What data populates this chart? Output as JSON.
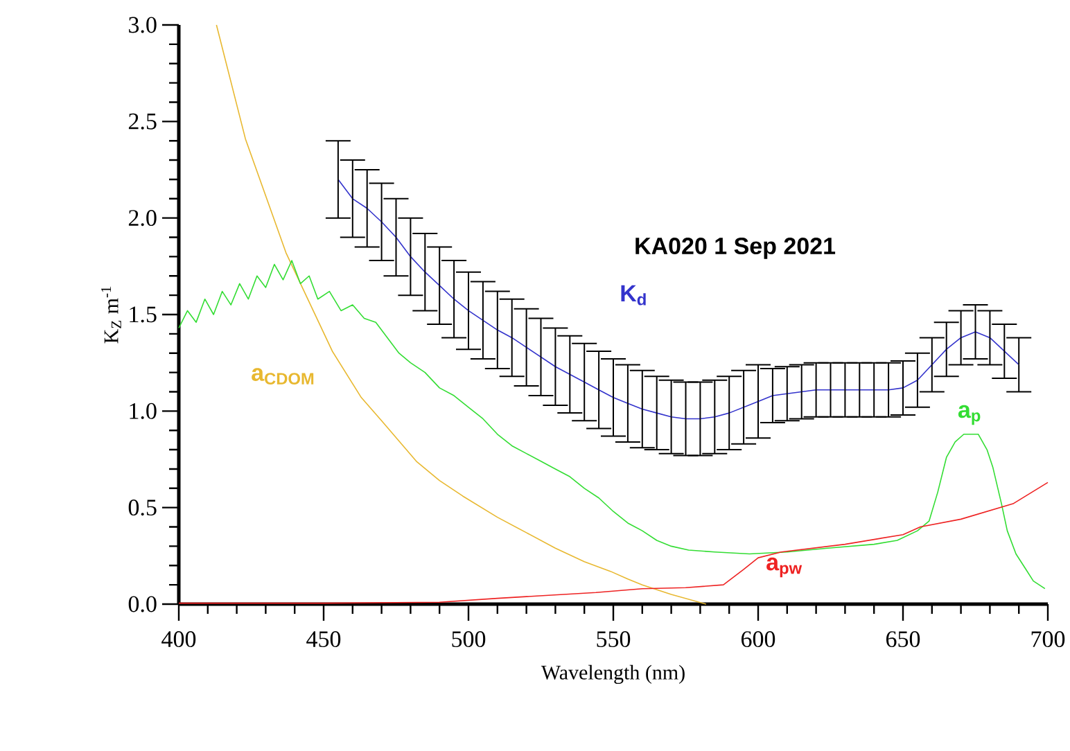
{
  "chart_data": {
    "type": "line",
    "title": "KA020 1 Sep 2021",
    "xlabel": "Wavelength (nm)",
    "ylabel": "K$_{Z}$ m$^{-1}$",
    "xlim": [
      400,
      700
    ],
    "ylim": [
      0,
      3
    ],
    "xticks": [
      400,
      450,
      500,
      550,
      600,
      650,
      700
    ],
    "yticks": [
      {
        "value": 0,
        "label": "0.0"
      },
      {
        "value": 0.5,
        "label": "0.5"
      },
      {
        "value": 1,
        "label": "1.0"
      },
      {
        "value": 1.5,
        "label": "1.5"
      },
      {
        "value": 2,
        "label": "2.0"
      },
      {
        "value": 2.5,
        "label": "2.5"
      },
      {
        "value": 3,
        "label": "3.0"
      }
    ],
    "series": [
      {
        "name": "a$_{CDOM}$",
        "color": "#e8b830",
        "x": [
          413,
          423,
          437,
          453,
          463,
          470,
          482,
          490,
          498,
          510,
          520,
          530,
          540,
          549,
          555,
          560,
          570,
          582
        ],
        "values": [
          3.0,
          2.41,
          1.82,
          1.31,
          1.07,
          0.95,
          0.74,
          0.64,
          0.56,
          0.45,
          0.37,
          0.29,
          0.22,
          0.17,
          0.13,
          0.1,
          0.05,
          0.0
        ]
      },
      {
        "name": "a$_{p}$",
        "color": "#33dd33",
        "x": [
          400,
          403,
          406,
          409,
          412,
          415,
          418,
          421,
          424,
          427,
          430,
          433,
          436,
          439,
          442,
          445,
          448,
          452,
          456,
          460,
          464,
          468,
          472,
          476,
          480,
          485,
          490,
          495,
          500,
          505,
          510,
          515,
          520,
          525,
          530,
          535,
          540,
          545,
          550,
          555,
          560,
          565,
          570,
          576,
          585,
          597,
          610,
          624,
          640,
          648,
          655,
          659,
          662,
          665,
          668,
          671,
          676,
          679,
          681,
          684,
          686,
          689,
          692,
          695,
          699
        ],
        "values": [
          1.43,
          1.52,
          1.46,
          1.58,
          1.5,
          1.62,
          1.55,
          1.66,
          1.58,
          1.7,
          1.64,
          1.76,
          1.68,
          1.78,
          1.66,
          1.7,
          1.58,
          1.62,
          1.52,
          1.55,
          1.48,
          1.46,
          1.38,
          1.3,
          1.25,
          1.2,
          1.12,
          1.08,
          1.02,
          0.96,
          0.88,
          0.82,
          0.78,
          0.74,
          0.7,
          0.66,
          0.6,
          0.55,
          0.48,
          0.42,
          0.38,
          0.33,
          0.3,
          0.28,
          0.27,
          0.26,
          0.27,
          0.29,
          0.31,
          0.33,
          0.38,
          0.43,
          0.58,
          0.76,
          0.84,
          0.88,
          0.88,
          0.8,
          0.71,
          0.52,
          0.38,
          0.26,
          0.19,
          0.12,
          0.08
        ]
      },
      {
        "name": "a$_{pw}$",
        "color": "#ee2222",
        "x": [
          400,
          450,
          490,
          510,
          544,
          560,
          575,
          588,
          595,
          600,
          608,
          630,
          650,
          656,
          670,
          688,
          700
        ],
        "values": [
          0.005,
          0.005,
          0.01,
          0.03,
          0.06,
          0.08,
          0.085,
          0.1,
          0.18,
          0.24,
          0.27,
          0.31,
          0.36,
          0.4,
          0.44,
          0.52,
          0.63
        ]
      },
      {
        "name": "K$_{d}$",
        "color": "#3333cc",
        "x": [
          455,
          460,
          465,
          470,
          475,
          480,
          485,
          490,
          495,
          500,
          505,
          510,
          515,
          520,
          525,
          530,
          535,
          540,
          545,
          550,
          555,
          560,
          565,
          570,
          575,
          580,
          585,
          590,
          595,
          600,
          605,
          610,
          615,
          620,
          625,
          630,
          635,
          640,
          645,
          650,
          655,
          660,
          665,
          670,
          675,
          680,
          685,
          690
        ],
        "values": [
          2.2,
          2.1,
          2.05,
          1.98,
          1.9,
          1.8,
          1.72,
          1.65,
          1.58,
          1.52,
          1.47,
          1.42,
          1.38,
          1.33,
          1.28,
          1.23,
          1.19,
          1.15,
          1.11,
          1.07,
          1.04,
          1.01,
          0.99,
          0.97,
          0.96,
          0.96,
          0.97,
          0.99,
          1.02,
          1.05,
          1.08,
          1.09,
          1.1,
          1.11,
          1.11,
          1.11,
          1.11,
          1.11,
          1.11,
          1.12,
          1.16,
          1.24,
          1.32,
          1.38,
          1.41,
          1.38,
          1.31,
          1.24
        ],
        "errors": [
          0.2,
          0.2,
          0.2,
          0.2,
          0.2,
          0.2,
          0.2,
          0.2,
          0.2,
          0.2,
          0.2,
          0.2,
          0.2,
          0.2,
          0.2,
          0.2,
          0.2,
          0.2,
          0.2,
          0.2,
          0.2,
          0.2,
          0.19,
          0.19,
          0.19,
          0.19,
          0.19,
          0.19,
          0.19,
          0.19,
          0.14,
          0.14,
          0.14,
          0.14,
          0.14,
          0.14,
          0.14,
          0.14,
          0.14,
          0.14,
          0.14,
          0.14,
          0.14,
          0.14,
          0.14,
          0.14,
          0.14,
          0.14
        ]
      }
    ]
  }
}
